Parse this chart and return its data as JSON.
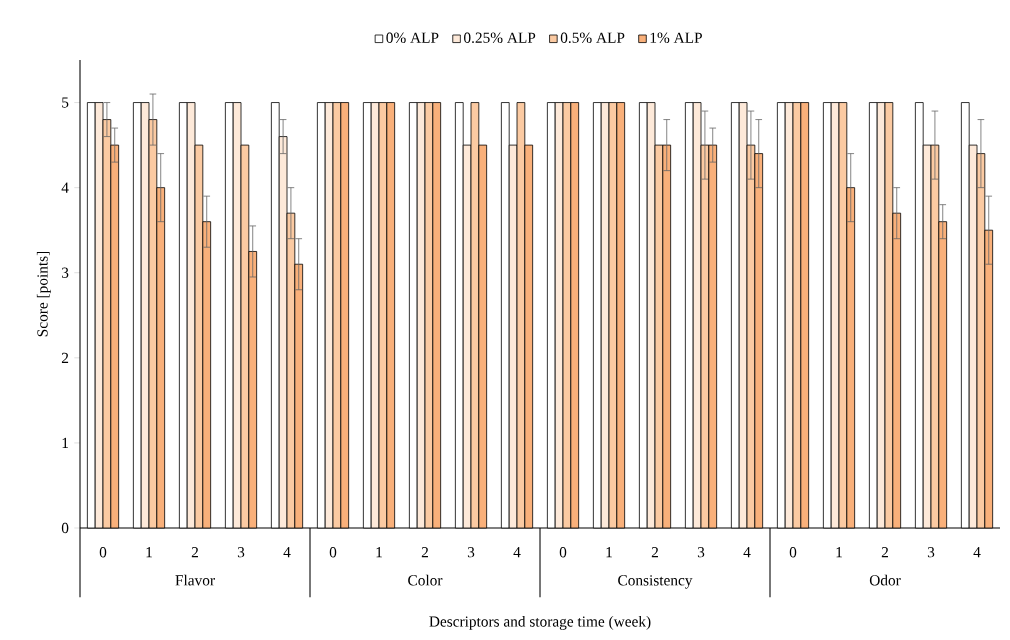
{
  "chart_data": {
    "type": "bar",
    "xlabel": "Descriptors and storage time (week)",
    "ylabel": "Score [points]",
    "categories": [
      "0",
      "1",
      "2",
      "3",
      "4",
      "0",
      "1",
      "2",
      "3",
      "4",
      "0",
      "1",
      "2",
      "3",
      "4",
      "0",
      "1",
      "2",
      "3",
      "4"
    ],
    "annotations": [
      "Flavor",
      "Color",
      "Consistency",
      "Odor"
    ],
    "series": [
      {
        "name": "0% ALP",
        "color": "#ffffff",
        "values": [
          5,
          5,
          5,
          5,
          5,
          5,
          5,
          5,
          5,
          5,
          5,
          5,
          5,
          5,
          5,
          5,
          5,
          5,
          5,
          5
        ]
      },
      {
        "name": "0.25% ALP",
        "color": "#fde9d9",
        "values": [
          5,
          5,
          5,
          5,
          4.6,
          5,
          5,
          5,
          4.5,
          4.5,
          5,
          5,
          5,
          5,
          5,
          5,
          5,
          5,
          4.5,
          4.5
        ],
        "errors": [
          null,
          null,
          null,
          null,
          0.2,
          null,
          null,
          null,
          null,
          null,
          null,
          null,
          null,
          null,
          null,
          null,
          null,
          null,
          null,
          null
        ]
      },
      {
        "name": "0.5% ALP",
        "color": "#fbcaa2",
        "values": [
          4.8,
          4.8,
          4.5,
          4.5,
          3.7,
          5,
          5,
          5,
          5,
          5,
          5,
          5,
          4.5,
          4.5,
          4.5,
          5,
          5,
          5,
          4.5,
          4.4
        ],
        "errors": [
          0.2,
          0.3,
          null,
          null,
          0.3,
          null,
          null,
          null,
          null,
          null,
          null,
          null,
          null,
          0.4,
          0.4,
          null,
          null,
          null,
          0.4,
          0.4
        ]
      },
      {
        "name": "1% ALP",
        "color": "#f9b07a",
        "values": [
          4.5,
          4.0,
          3.6,
          3.25,
          3.1,
          5,
          5,
          5,
          4.5,
          4.5,
          5,
          5,
          4.5,
          4.5,
          4.4,
          5,
          4.0,
          3.7,
          3.6,
          3.5
        ],
        "errors": [
          0.2,
          0.4,
          0.3,
          0.3,
          0.3,
          null,
          null,
          null,
          null,
          null,
          null,
          null,
          0.3,
          0.2,
          0.4,
          null,
          0.4,
          0.3,
          0.2,
          0.4
        ]
      }
    ],
    "ylim": [
      0,
      5.5
    ],
    "yticks": [
      0,
      1,
      2,
      3,
      4,
      5
    ],
    "legend": "top",
    "grid": false
  }
}
